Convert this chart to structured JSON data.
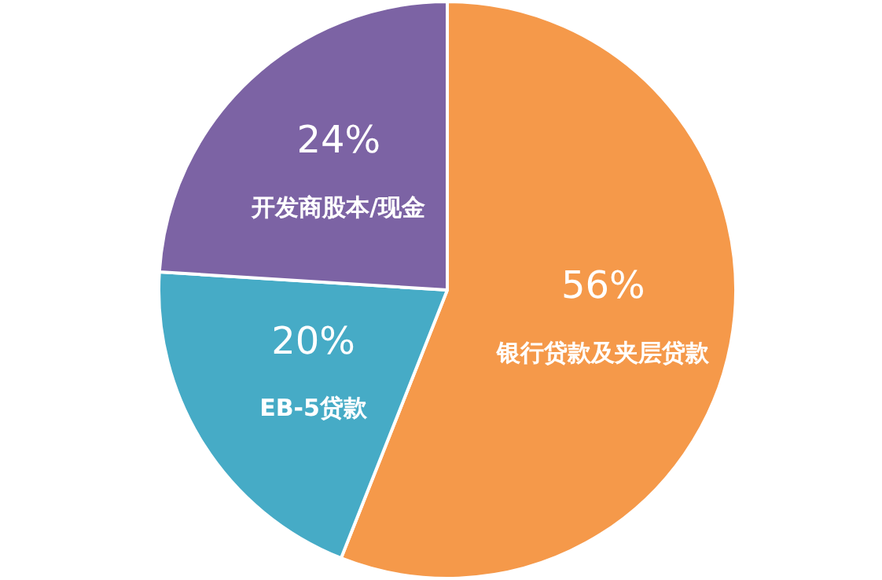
{
  "chart_data": {
    "type": "pie",
    "categories": [
      "银行贷款及夹层贷款",
      "EB-5贷款",
      "开发商股本/现金"
    ],
    "values": [
      56,
      20,
      24
    ],
    "colors": [
      "#f5994a",
      "#46abc6",
      "#7c63a4"
    ],
    "value_labels": [
      "56%",
      "20%",
      "24%"
    ],
    "legend": false
  }
}
